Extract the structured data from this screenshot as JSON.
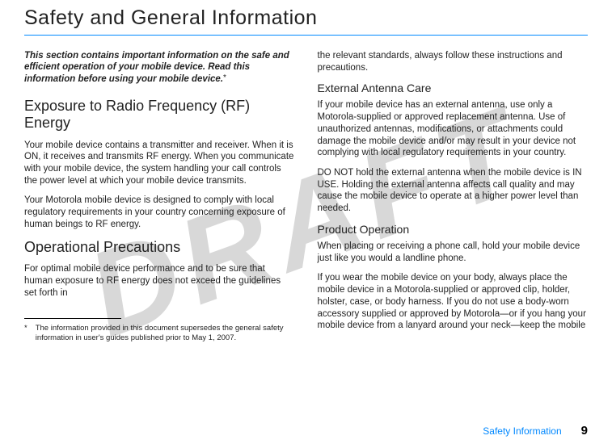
{
  "watermark": "DRAFT",
  "title": "Safety and General Information",
  "intro_bold": "This section contains important information on the safe and efficient operation of your mobile device. Read this information before using your mobile device.",
  "intro_star": "*",
  "left": {
    "h2a": "Exposure to Radio Frequency (RF) Energy",
    "p1": "Your mobile device contains a transmitter and receiver. When it is ON, it receives and transmits RF energy. When you communicate with your mobile device, the system handling your call controls the power level at which your mobile device transmits.",
    "p2": "Your Motorola mobile device is designed to comply with local regulatory requirements in your country concerning exposure of human beings to RF energy.",
    "h2b": "Operational Precautions",
    "p3": "For optimal mobile device performance and to be sure that human exposure to RF energy does not exceed the guidelines set forth in"
  },
  "right": {
    "p0": "the relevant standards, always follow these instructions and precautions.",
    "h3a": "External Antenna Care",
    "p1": "If your mobile device has an external antenna, use only a Motorola-supplied or approved replacement antenna. Use of unauthorized antennas, modifications, or attachments could damage the mobile device and/or may result in your device not complying with local regulatory requirements in your country.",
    "p2": "DO NOT hold the external antenna when the mobile device is IN USE. Holding the external antenna affects call quality and may cause the mobile device to operate at a higher power level than needed.",
    "h3b": "Product Operation",
    "p3": "When placing or receiving a phone call, hold your mobile device just like you would a landline phone.",
    "p4": "If you wear the mobile device on your body, always place the mobile device in a Motorola-supplied or approved clip, holder, holster, case, or body harness. If you do not use a body-worn accessory supplied or approved by Motorola—or if you hang your mobile device from a lanyard around your neck—keep the mobile"
  },
  "footnote": {
    "marker": "*",
    "text": "The information provided in this document supersedes the general safety information in user's guides published prior to May 1, 2007."
  },
  "footer": {
    "label": "Safety Information",
    "page": "9"
  },
  "colors": {
    "accent": "#0088ff",
    "watermark": "#d8d8d8",
    "text": "#222222"
  }
}
